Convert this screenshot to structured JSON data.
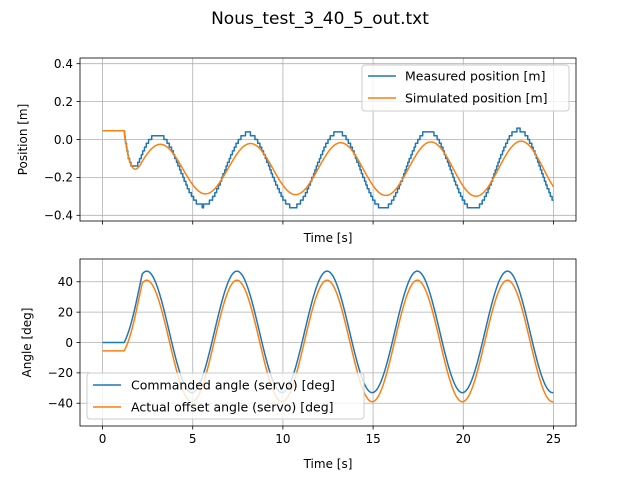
{
  "chart_data": {
    "title": "Nous_test_3_40_5_out.txt",
    "colors": {
      "series1": "#1f77b4",
      "series2": "#ff7f0e",
      "grid": "#b0b0b0"
    },
    "charts": [
      {
        "id": "position",
        "type": "line",
        "xlabel": "Time [s]",
        "ylabel": "Position [m]",
        "xlim": [
          -1.25,
          26.25
        ],
        "ylim": [
          -0.43,
          0.43
        ],
        "yticks": [
          0.4,
          0.2,
          0.0,
          -0.2,
          -0.4
        ],
        "ytick_labels": [
          "0.4",
          "0.2",
          "0.0",
          "−0.2",
          "−0.4"
        ],
        "grid": true,
        "show_xtick_labels": false,
        "legend": {
          "position": "upper right",
          "entries": [
            "Measured position [m]",
            "Simulated position [m]"
          ]
        },
        "series": [
          {
            "name": "Measured position [m]",
            "style": "step",
            "model": {
              "t0": 1.2,
              "start": 0.046,
              "amplitude": 0.185,
              "offset": -0.16,
              "period": 5.0,
              "phase": 0.6,
              "growth": 0.0065,
              "step": 0.02
            }
          },
          {
            "name": "Simulated position [m]",
            "style": "line",
            "model": {
              "t0": 1.2,
              "start": 0.046,
              "amplitude": 0.128,
              "offset": -0.155,
              "period": 5.0,
              "phase": 0.75,
              "growth": 0.0065,
              "step": 0
            }
          }
        ]
      },
      {
        "id": "angle",
        "type": "line",
        "xlabel": "Time [s]",
        "ylabel": "Angle [deg]",
        "xlim": [
          -1.25,
          26.25
        ],
        "ylim": [
          -55,
          55
        ],
        "xticks": [
          0,
          5,
          10,
          15,
          20,
          25
        ],
        "xtick_labels": [
          "0",
          "5",
          "10",
          "15",
          "20",
          "25"
        ],
        "yticks": [
          40,
          20,
          0,
          -20,
          -40
        ],
        "ytick_labels": [
          "40",
          "20",
          "0",
          "−20",
          "−40"
        ],
        "grid": true,
        "show_xtick_labels": true,
        "legend": {
          "position": "lower left",
          "entries": [
            "Commanded angle (servo) [deg]",
            "Actual offset angle (servo) [deg]"
          ]
        },
        "series": [
          {
            "name": "Commanded angle (servo) [deg]",
            "model": {
              "t0": 1.2,
              "start": 0.0,
              "amplitude": 40.0,
              "offset": 7.0,
              "period": 5.0,
              "phase": 0.0
            }
          },
          {
            "name": "Actual offset angle (servo) [deg]",
            "model": {
              "t0": 1.2,
              "start": -5.5,
              "amplitude": 40.0,
              "offset": 1.0,
              "period": 5.0,
              "phase": 0.0
            }
          }
        ]
      }
    ]
  }
}
